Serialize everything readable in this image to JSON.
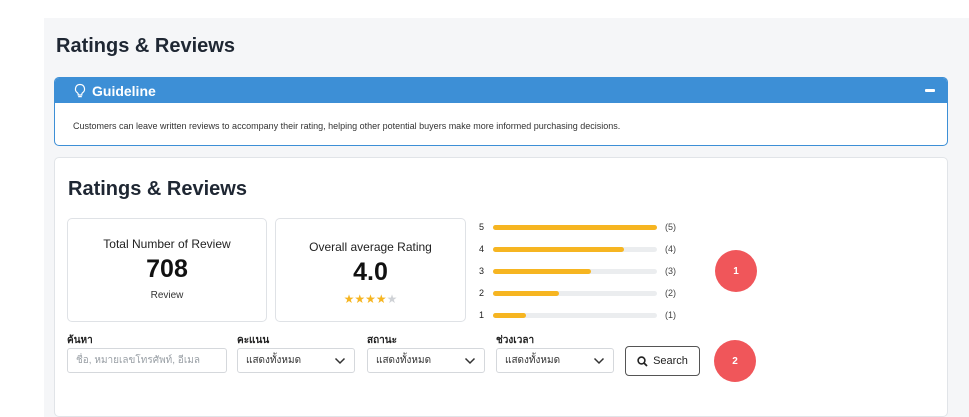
{
  "page": {
    "title": "Ratings & Reviews"
  },
  "guideline": {
    "title": "Guideline",
    "text": "Customers can leave written reviews to accompany their rating, helping other potential buyers make more informed purchasing decisions."
  },
  "card": {
    "title": "Ratings & Reviews",
    "total": {
      "label": "Total Number of Review",
      "value": "708",
      "unit": "Review"
    },
    "average": {
      "label": "Overall average Rating",
      "value": "4.0",
      "stars_filled": 4,
      "stars_total": 5
    },
    "distribution": [
      {
        "star": "5",
        "count": "(5)",
        "fraction": 1.0
      },
      {
        "star": "4",
        "count": "(4)",
        "fraction": 0.8
      },
      {
        "star": "3",
        "count": "(3)",
        "fraction": 0.6
      },
      {
        "star": "2",
        "count": "(2)",
        "fraction": 0.4
      },
      {
        "star": "1",
        "count": "(1)",
        "fraction": 0.2
      }
    ]
  },
  "filters": {
    "search": {
      "label": "ค้นหา",
      "placeholder": "ชื่อ, หมายเลขโทรศัพท์, อีเมล"
    },
    "score": {
      "label": "คะแนน",
      "value": "แสดงทั้งหมด"
    },
    "status": {
      "label": "สถานะ",
      "value": "แสดงทั้งหมด"
    },
    "period": {
      "label": "ช่วงเวลา",
      "value": "แสดงทั้งหมด"
    },
    "search_button": "Search"
  },
  "annotations": {
    "badge1": "1",
    "badge2": "2"
  },
  "colors": {
    "accent": "#3d8fd6",
    "star": "#f6b521",
    "badge": "#f0565a"
  }
}
